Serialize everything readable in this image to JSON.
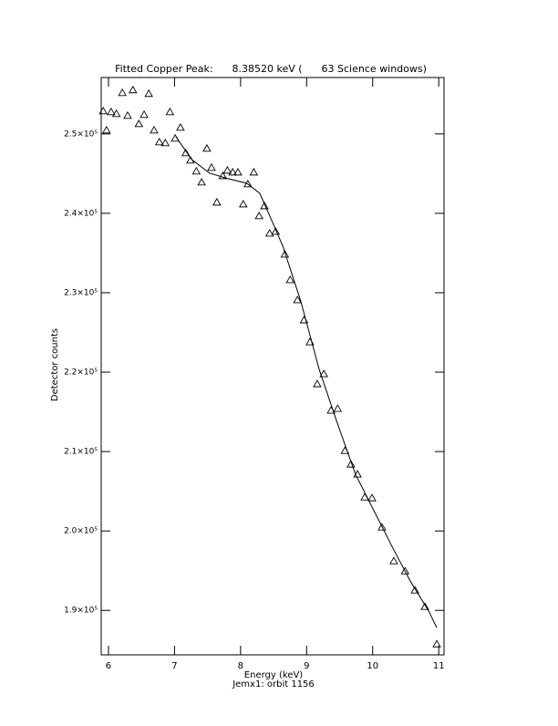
{
  "chart_data": {
    "type": "scatter",
    "title": "Fitted Copper Peak:      8.38520 keV (      63 Science windows)",
    "x_label": "Energy (keV)",
    "subtitle": "Jemx1: orbit 1156",
    "y_label": "Detector counts",
    "xlim": [
      5.89,
      11.08
    ],
    "ylim": [
      184400,
      257100
    ],
    "xticks": [
      6,
      7,
      8,
      9,
      10,
      11
    ],
    "yticks": [
      {
        "value": 190000,
        "label": "1.9×10⁵"
      },
      {
        "value": 200000,
        "label": "2.0×10⁵"
      },
      {
        "value": 210000,
        "label": "2.1×10⁵"
      },
      {
        "value": 220000,
        "label": "2.2×10⁵"
      },
      {
        "value": 230000,
        "label": "2.3×10⁵"
      },
      {
        "value": 240000,
        "label": "2.4×10⁵"
      },
      {
        "value": 250000,
        "label": "2.5×10⁵"
      }
    ],
    "series": [
      {
        "type": "scatter",
        "color": "#000000",
        "x": [
          5.92,
          5.97,
          6.04,
          6.12,
          6.21,
          6.29,
          6.37,
          6.46,
          6.54,
          6.61,
          6.69,
          6.77,
          6.86,
          6.93,
          7.01,
          7.09,
          7.17,
          7.24,
          7.33,
          7.41,
          7.49,
          7.56,
          7.64,
          7.73,
          7.8,
          7.88,
          7.96,
          8.04,
          8.11,
          8.2,
          8.28,
          8.36,
          8.44,
          8.53,
          8.67,
          8.75,
          8.86,
          8.96,
          9.05,
          9.16,
          9.26,
          9.37,
          9.47,
          9.58,
          9.67,
          9.77,
          9.88,
          9.99,
          10.14,
          10.32,
          10.49,
          10.64,
          10.79,
          10.97
        ],
        "values": [
          252870,
          250460,
          252760,
          252530,
          255170,
          252300,
          255520,
          251260,
          252410,
          255060,
          250460,
          248970,
          248850,
          252760,
          249430,
          250800,
          247590,
          246670,
          245290,
          243910,
          248160,
          245750,
          241380,
          244710,
          245400,
          245170,
          245170,
          241150,
          243680,
          245170,
          239660,
          240920,
          237470,
          237700,
          234830,
          231610,
          229080,
          226550,
          223790,
          218510,
          219770,
          215170,
          215400,
          210110,
          208390,
          207130,
          204250,
          204140,
          200460,
          196210,
          194940,
          192530,
          190460,
          185750
        ]
      },
      {
        "type": "line",
        "color": "#000000",
        "x": [
          7.02,
          7.26,
          7.53,
          7.81,
          8.09,
          8.29,
          8.43,
          8.64,
          8.91,
          9.19,
          9.47,
          9.74,
          10.02,
          10.3,
          10.57,
          10.85,
          10.97
        ],
        "values": [
          249660,
          246780,
          245060,
          244370,
          243790,
          242530,
          239890,
          235860,
          228970,
          220340,
          213450,
          207130,
          202530,
          197930,
          193680,
          189890,
          187820
        ]
      }
    ]
  }
}
